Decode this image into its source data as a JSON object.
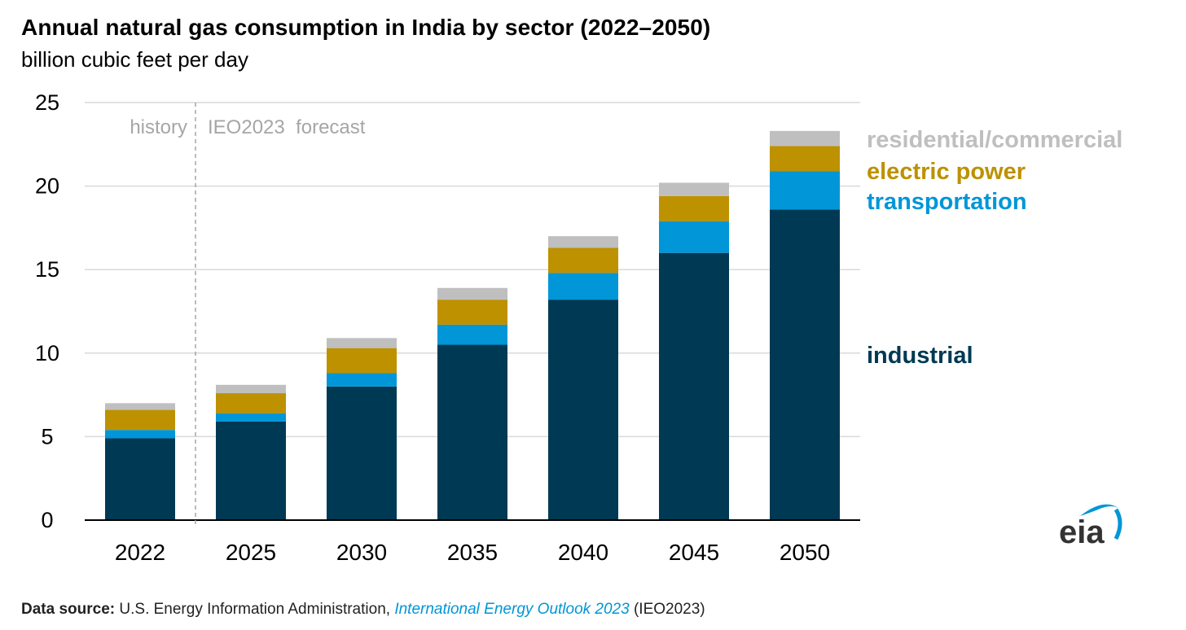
{
  "title": "Annual natural gas consumption in India by sector (2022–2050)",
  "subtitle": "billion cubic feet per day",
  "colors": {
    "industrial": "#003953",
    "transportation": "#0096d7",
    "electric_power": "#bd9100",
    "residential_commercial": "#bfbfbf",
    "grid": "#d9d9d9",
    "annotation": "#a6a6a6"
  },
  "chart_data": {
    "type": "bar",
    "stacked": true,
    "categories": [
      "2022",
      "2025",
      "2030",
      "2035",
      "2040",
      "2045",
      "2050"
    ],
    "series": [
      {
        "name": "industrial",
        "color": "#003953",
        "values": [
          4.9,
          5.9,
          8.0,
          10.5,
          13.2,
          16.0,
          18.6
        ]
      },
      {
        "name": "transportation",
        "color": "#0096d7",
        "values": [
          0.5,
          0.5,
          0.8,
          1.2,
          1.6,
          1.9,
          2.3
        ]
      },
      {
        "name": "electric power",
        "color": "#bd9100",
        "values": [
          1.2,
          1.2,
          1.5,
          1.5,
          1.5,
          1.5,
          1.5
        ]
      },
      {
        "name": "residential/commercial",
        "color": "#bfbfbf",
        "values": [
          0.4,
          0.5,
          0.6,
          0.7,
          0.7,
          0.8,
          0.9
        ]
      }
    ],
    "yticks": [
      0,
      5,
      10,
      15,
      20,
      25
    ],
    "ylim": [
      0,
      25
    ],
    "xlabel": "",
    "ylabel": "billion cubic feet per day",
    "grid": true,
    "annotations": {
      "history": "history",
      "forecast": "IEO2023  forecast"
    },
    "legend_position": "right"
  },
  "source": {
    "label": "Data source:",
    "text": "U.S. Energy Information Administration,",
    "publication": "International Energy Outlook 2023",
    "suffix": "(IEO2023)"
  },
  "logo": {
    "text": "eia"
  }
}
